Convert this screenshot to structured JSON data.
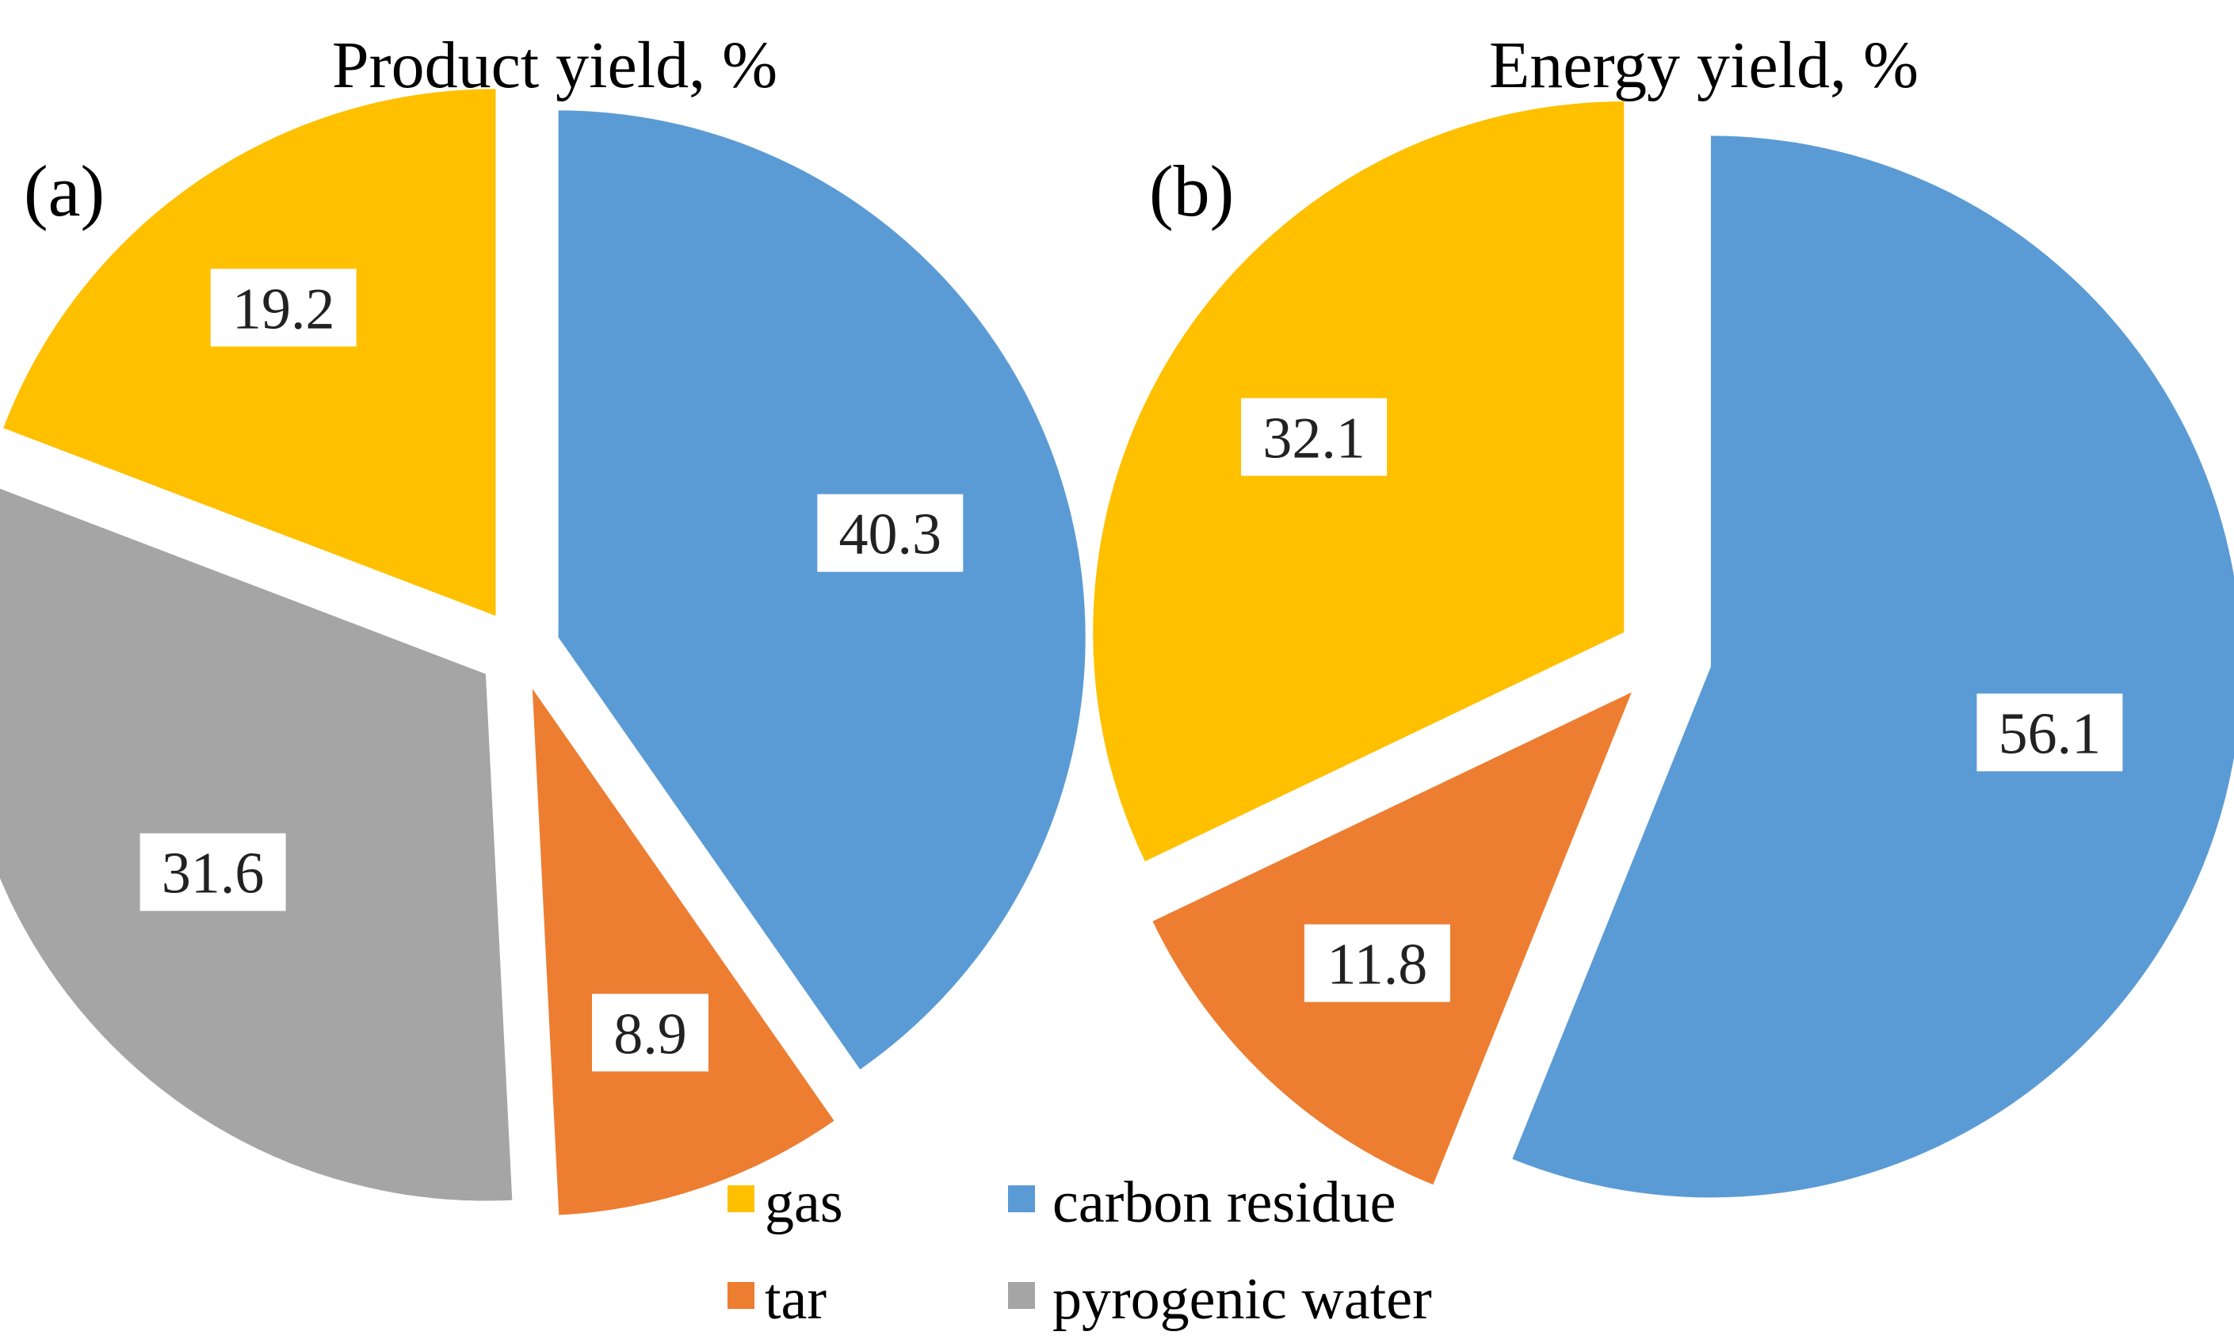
{
  "colors": {
    "gas": "#FFC000",
    "carbon residue": "#5B9BD5",
    "tar": "#ED7D31",
    "pyrogenic water": "#A5A5A5"
  },
  "legend": [
    {
      "key": "gas",
      "label": "gas"
    },
    {
      "key": "carbon residue",
      "label": "carbon residue"
    },
    {
      "key": "tar",
      "label": "tar"
    },
    {
      "key": "pyrogenic water",
      "label": "pyrogenic water"
    }
  ],
  "chart_data": [
    {
      "type": "pie",
      "panel": "(a)",
      "title": "Product yield, %",
      "slices": [
        {
          "name": "carbon residue",
          "value": 40.3,
          "label": "40.3"
        },
        {
          "name": "tar",
          "value": 8.9,
          "label": "8.9"
        },
        {
          "name": "pyrogenic water",
          "value": 31.6,
          "label": "31.6"
        },
        {
          "name": "gas",
          "value": 19.2,
          "label": "19.2"
        }
      ]
    },
    {
      "type": "pie",
      "panel": "(b)",
      "title": "Energy yield, %",
      "slices": [
        {
          "name": "carbon residue",
          "value": 56.1,
          "label": "56.1"
        },
        {
          "name": "tar",
          "value": 11.8,
          "label": "11.8"
        },
        {
          "name": "gas",
          "value": 32.1,
          "label": "32.1"
        }
      ]
    }
  ]
}
